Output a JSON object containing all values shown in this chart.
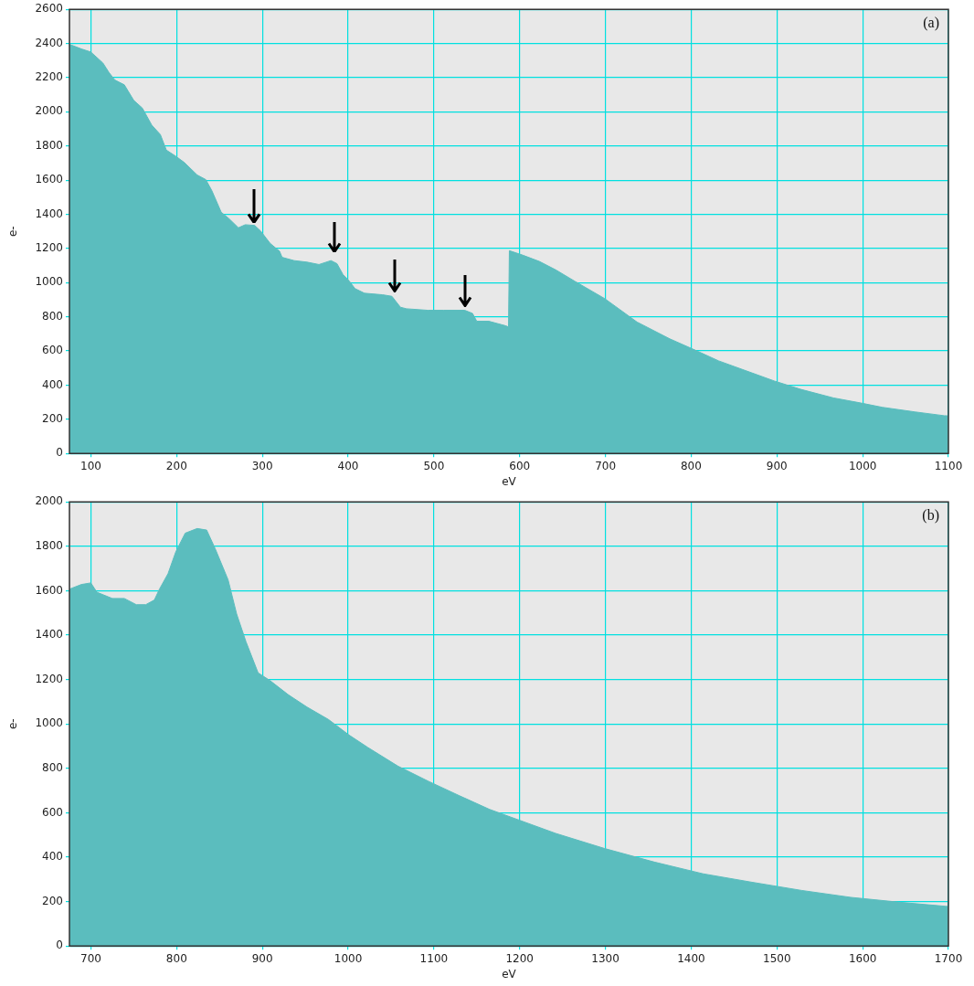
{
  "chart_data": [
    {
      "type": "area",
      "xlabel": "eV",
      "ylabel": "e-",
      "annotations": [
        "(a)"
      ],
      "color": "#5bbdbe",
      "grid": true,
      "x": [
        75,
        89,
        100,
        114,
        121,
        128,
        139,
        150,
        160,
        171,
        181,
        188,
        199,
        209,
        224,
        234,
        241,
        252,
        261,
        272,
        280,
        291,
        298,
        309,
        320,
        323,
        337,
        352,
        366,
        380,
        387,
        394,
        401,
        408,
        419,
        440,
        451,
        461,
        468,
        493,
        511,
        536,
        545,
        550,
        564,
        584,
        587,
        588,
        604,
        623,
        642,
        665,
        699,
        737,
        775,
        802,
        832,
        870,
        897,
        928,
        966,
        997,
        1023,
        1061,
        1095,
        1100
      ],
      "values": [
        2395,
        2368,
        2350,
        2286,
        2231,
        2186,
        2158,
        2067,
        2022,
        1922,
        1867,
        1776,
        1740,
        1703,
        1630,
        1603,
        1539,
        1412,
        1375,
        1321,
        1339,
        1335,
        1302,
        1230,
        1184,
        1148,
        1129,
        1120,
        1106,
        1129,
        1111,
        1047,
        1011,
        965,
        938,
        929,
        920,
        856,
        847,
        838,
        838,
        838,
        820,
        774,
        774,
        747,
        740,
        1187,
        1160,
        1124,
        1075,
        1006,
        907,
        769,
        671,
        611,
        542,
        473,
        424,
        375,
        325,
        296,
        270,
        243,
        221,
        220
      ],
      "xlim": [
        75,
        1100
      ],
      "xticks": [
        100,
        200,
        300,
        400,
        500,
        600,
        700,
        800,
        900,
        1000,
        1100
      ],
      "ylim": [
        0,
        2600
      ],
      "yticks": [
        0,
        200,
        400,
        600,
        800,
        1000,
        1200,
        1400,
        1600,
        1800,
        2000,
        2200,
        2400,
        2600
      ]
    },
    {
      "type": "area",
      "xlabel": "eV",
      "ylabel": "e-",
      "annotations": [
        "(b)"
      ],
      "color": "#5bbdbe",
      "grid": true,
      "x": [
        675,
        689,
        700,
        707,
        725,
        739,
        753,
        764,
        774,
        780,
        790,
        799,
        810,
        824,
        835,
        845,
        860,
        870,
        881,
        895,
        909,
        930,
        952,
        977,
        1001,
        1023,
        1058,
        1094,
        1129,
        1165,
        1200,
        1242,
        1299,
        1357,
        1414,
        1471,
        1529,
        1586,
        1643,
        1696,
        1700
      ],
      "values": [
        1607,
        1628,
        1635,
        1593,
        1565,
        1565,
        1537,
        1537,
        1558,
        1607,
        1677,
        1775,
        1859,
        1880,
        1873,
        1789,
        1649,
        1495,
        1369,
        1230,
        1195,
        1132,
        1076,
        1020,
        950,
        894,
        810,
        741,
        678,
        615,
        566,
        507,
        439,
        378,
        325,
        287,
        250,
        219,
        197,
        179,
        178
      ],
      "xlim": [
        675,
        1700
      ],
      "xticks": [
        700,
        800,
        900,
        1000,
        1100,
        1200,
        1300,
        1400,
        1500,
        1600,
        1700
      ],
      "ylim": [
        0,
        2000
      ],
      "yticks": [
        0,
        200,
        400,
        600,
        800,
        1000,
        1200,
        1400,
        1600,
        1800,
        2000
      ]
    }
  ]
}
